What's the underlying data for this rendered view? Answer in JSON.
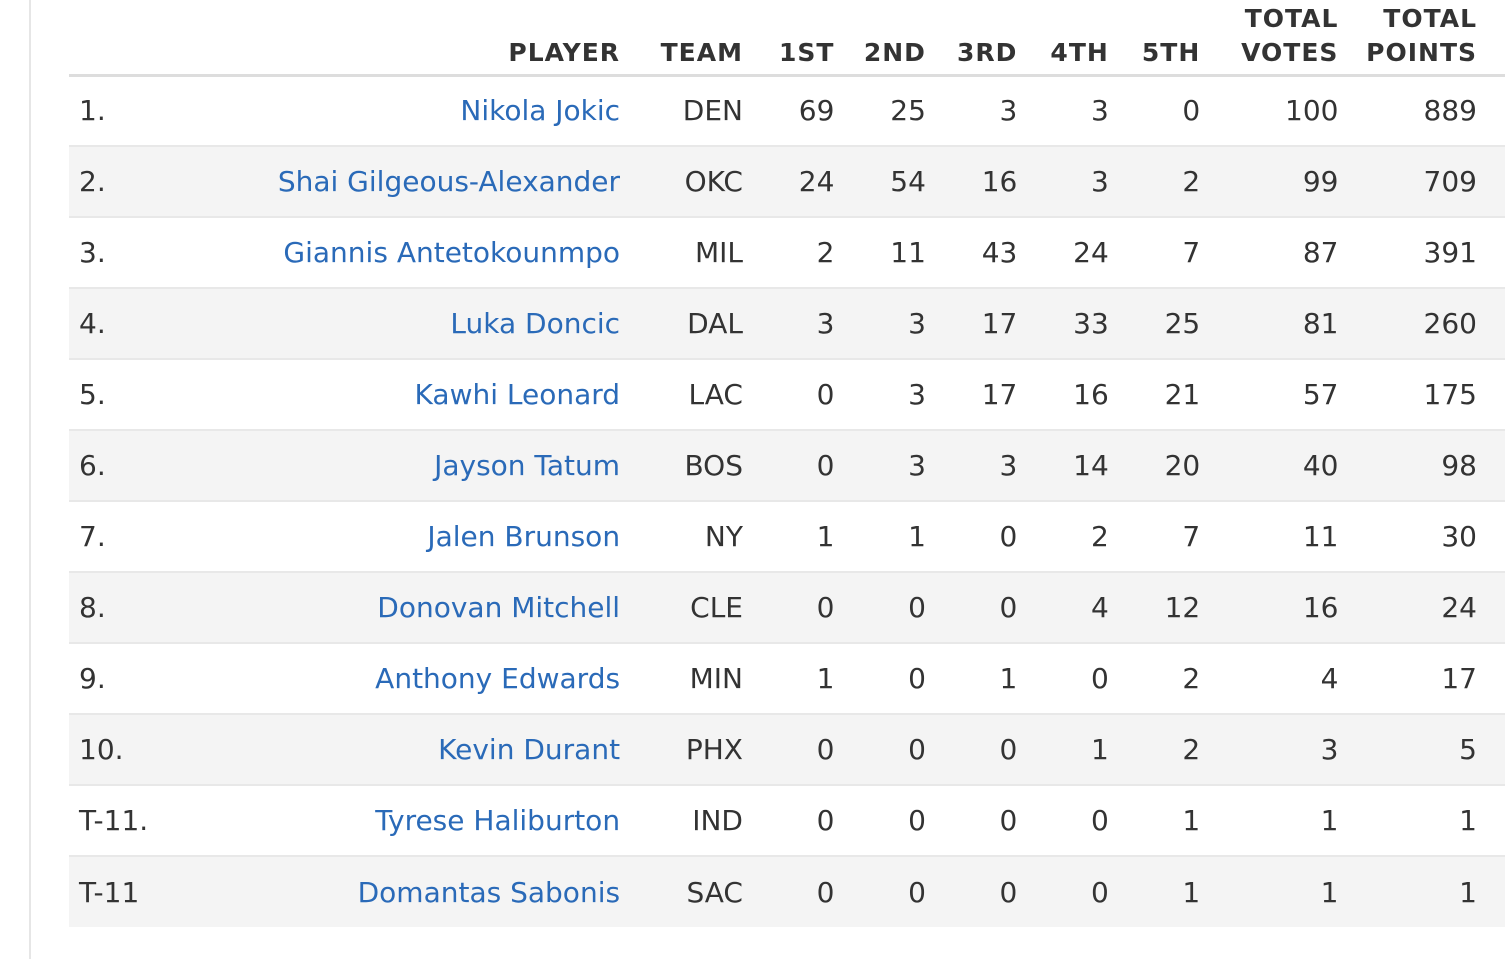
{
  "headers": {
    "rank": "",
    "player": "PLAYER",
    "team": "TEAM",
    "first": "1ST",
    "second": "2ND",
    "third": "3RD",
    "fourth": "4TH",
    "fifth": "5TH",
    "total_votes_1": "TOTAL",
    "total_votes_2": "VOTES",
    "total_points_1": "TOTAL",
    "total_points_2": "POINTS"
  },
  "rows": [
    {
      "rank": "1.",
      "player": "Nikola Jokic",
      "team": "DEN",
      "first": "69",
      "second": "25",
      "third": "3",
      "fourth": "3",
      "fifth": "0",
      "total_votes": "100",
      "total_points": "889"
    },
    {
      "rank": "2.",
      "player": "Shai Gilgeous-Alexander",
      "team": "OKC",
      "first": "24",
      "second": "54",
      "third": "16",
      "fourth": "3",
      "fifth": "2",
      "total_votes": "99",
      "total_points": "709"
    },
    {
      "rank": "3.",
      "player": "Giannis Antetokounmpo",
      "team": "MIL",
      "first": "2",
      "second": "11",
      "third": "43",
      "fourth": "24",
      "fifth": "7",
      "total_votes": "87",
      "total_points": "391"
    },
    {
      "rank": "4.",
      "player": "Luka Doncic",
      "team": "DAL",
      "first": "3",
      "second": "3",
      "third": "17",
      "fourth": "33",
      "fifth": "25",
      "total_votes": "81",
      "total_points": "260"
    },
    {
      "rank": "5.",
      "player": "Kawhi Leonard",
      "team": "LAC",
      "first": "0",
      "second": "3",
      "third": "17",
      "fourth": "16",
      "fifth": "21",
      "total_votes": "57",
      "total_points": "175"
    },
    {
      "rank": "6.",
      "player": "Jayson Tatum",
      "team": "BOS",
      "first": "0",
      "second": "3",
      "third": "3",
      "fourth": "14",
      "fifth": "20",
      "total_votes": "40",
      "total_points": "98"
    },
    {
      "rank": "7.",
      "player": "Jalen Brunson",
      "team": "NY",
      "first": "1",
      "second": "1",
      "third": "0",
      "fourth": "2",
      "fifth": "7",
      "total_votes": "11",
      "total_points": "30"
    },
    {
      "rank": "8.",
      "player": "Donovan Mitchell",
      "team": "CLE",
      "first": "0",
      "second": "0",
      "third": "0",
      "fourth": "4",
      "fifth": "12",
      "total_votes": "16",
      "total_points": "24"
    },
    {
      "rank": "9.",
      "player": "Anthony Edwards",
      "team": "MIN",
      "first": "1",
      "second": "0",
      "third": "1",
      "fourth": "0",
      "fifth": "2",
      "total_votes": "4",
      "total_points": "17"
    },
    {
      "rank": "10.",
      "player": "Kevin Durant",
      "team": "PHX",
      "first": "0",
      "second": "0",
      "third": "0",
      "fourth": "1",
      "fifth": "2",
      "total_votes": "3",
      "total_points": "5"
    },
    {
      "rank": "T-11.",
      "player": "Tyrese Haliburton",
      "team": "IND",
      "first": "0",
      "second": "0",
      "third": "0",
      "fourth": "0",
      "fifth": "1",
      "total_votes": "1",
      "total_points": "1"
    },
    {
      "rank": "T-11",
      "player": "Domantas Sabonis",
      "team": "SAC",
      "first": "0",
      "second": "0",
      "third": "0",
      "fourth": "0",
      "fifth": "1",
      "total_votes": "1",
      "total_points": "1"
    }
  ]
}
